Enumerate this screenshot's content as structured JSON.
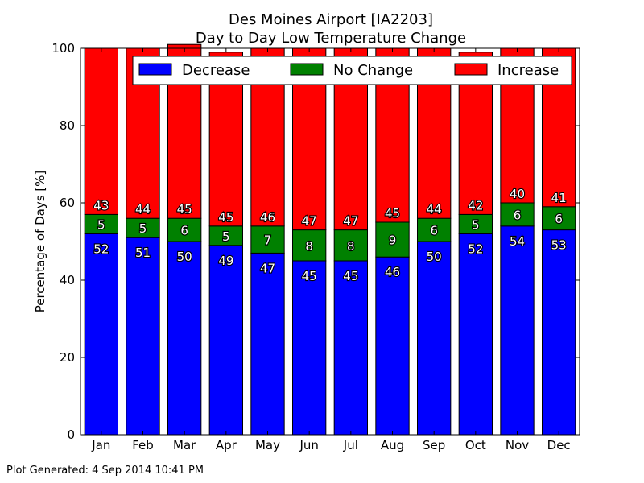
{
  "footer_text": "Plot Generated: 4 Sep 2014 10:41 PM",
  "chart_data": {
    "type": "bar",
    "stacked": true,
    "title": "Des Moines Airport [IA2203]",
    "subtitle": "Day to Day Low Temperature Change",
    "xlabel": "",
    "ylabel": "Percentage of Days [%]",
    "ylim": [
      0,
      100
    ],
    "yticks": [
      0,
      20,
      40,
      60,
      80,
      100
    ],
    "grid": false,
    "legend_position": "top-center",
    "categories": [
      "Jan",
      "Feb",
      "Mar",
      "Apr",
      "May",
      "Jun",
      "Jul",
      "Aug",
      "Sep",
      "Oct",
      "Nov",
      "Dec"
    ],
    "series": [
      {
        "name": "Decrease",
        "color": "#0000ff",
        "values": [
          52,
          51,
          50,
          49,
          47,
          45,
          45,
          46,
          50,
          52,
          54,
          53
        ],
        "labels": [
          "52",
          "51",
          "50",
          "49",
          "47",
          "45",
          "45",
          "46",
          "50",
          "52",
          "54",
          "53"
        ]
      },
      {
        "name": "No Change",
        "color": "#008000",
        "values": [
          5,
          5,
          6,
          5,
          7,
          8,
          8,
          9,
          6,
          5,
          6,
          6
        ],
        "labels": [
          "5",
          "5",
          "6",
          "5",
          "7",
          "8",
          "8",
          "9",
          "6",
          "5",
          "6",
          "6"
        ]
      },
      {
        "name": "Increase",
        "color": "#ff0000",
        "values": [
          43,
          44,
          45,
          45,
          46,
          47,
          47,
          45,
          44,
          42,
          40,
          41
        ],
        "labels": [
          "43",
          "44",
          "45",
          "45",
          "46",
          "47",
          "47",
          "45",
          "44",
          "42",
          "40",
          "41"
        ]
      }
    ]
  }
}
